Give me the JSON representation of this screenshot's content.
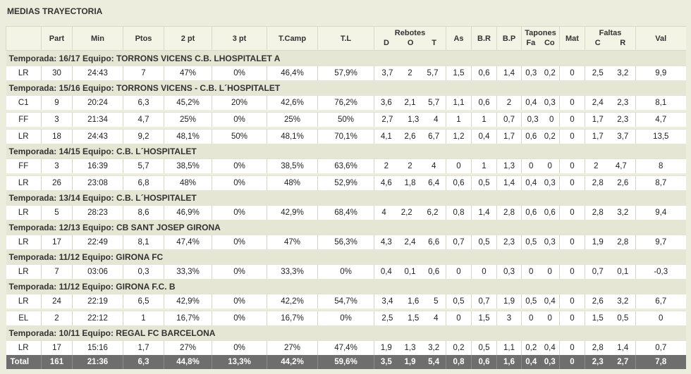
{
  "title": "MEDIAS TRAYECTORIA",
  "headers": {
    "blank": "",
    "part": "Part",
    "min": "Min",
    "ptos": "Ptos",
    "p2": "2 pt",
    "p3": "3 pt",
    "tcamp": "T.Camp",
    "tl": "T.L",
    "rebotes": "Rebotes",
    "reb_d": "D",
    "reb_o": "O",
    "reb_t": "T",
    "as": "As",
    "br": "B.R",
    "bp": "B.P",
    "tapones": "Tapones",
    "tap_fa": "Fa",
    "tap_co": "Co",
    "mat": "Mat",
    "faltas": "Faltas",
    "fal_c": "C",
    "fal_r": "R",
    "val": "Val"
  },
  "seasons": [
    {
      "label": "Temporada: 16/17 Equipo: TORRONS VICENS C.B. LHOSPITALET A",
      "rows": [
        [
          "LR",
          "30",
          "24:43",
          "7",
          "47%",
          "0%",
          "46,4%",
          "57,9%",
          "3,7",
          "2",
          "5,7",
          "1,5",
          "0,6",
          "1,4",
          "0,3",
          "0,2",
          "0",
          "2,5",
          "3,2",
          "9,9"
        ]
      ]
    },
    {
      "label": "Temporada: 15/16 Equipo: TORRONS VICENS - C.B. L´HOSPITALET",
      "rows": [
        [
          "C1",
          "9",
          "20:24",
          "6,3",
          "45,2%",
          "20%",
          "42,6%",
          "76,2%",
          "3,6",
          "2,1",
          "5,7",
          "1,1",
          "0,6",
          "2",
          "0,4",
          "0,3",
          "0",
          "2,4",
          "2,3",
          "8,1"
        ],
        [
          "FF",
          "3",
          "21:34",
          "4,7",
          "25%",
          "0%",
          "25%",
          "50%",
          "2,7",
          "1,3",
          "4",
          "1",
          "1",
          "0,7",
          "0,3",
          "0",
          "0",
          "1,7",
          "2,3",
          "4,7"
        ],
        [
          "LR",
          "18",
          "24:43",
          "9,2",
          "48,1%",
          "50%",
          "48,1%",
          "70,1%",
          "4,1",
          "2,6",
          "6,7",
          "1,2",
          "0,4",
          "1,7",
          "0,6",
          "0,2",
          "0",
          "1,7",
          "3,7",
          "13,5"
        ]
      ]
    },
    {
      "label": "Temporada: 14/15 Equipo: C.B. L´HOSPITALET",
      "rows": [
        [
          "FF",
          "3",
          "16:39",
          "5,7",
          "38,5%",
          "0%",
          "38,5%",
          "63,6%",
          "2",
          "2",
          "4",
          "0",
          "1",
          "1,3",
          "0",
          "0",
          "0",
          "2",
          "4,7",
          "8"
        ],
        [
          "LR",
          "26",
          "23:08",
          "6,8",
          "48%",
          "0%",
          "48%",
          "52,9%",
          "4,6",
          "1,8",
          "6,4",
          "0,6",
          "0,5",
          "1,4",
          "0,4",
          "0,3",
          "0",
          "2,8",
          "2,6",
          "8,7"
        ]
      ]
    },
    {
      "label": "Temporada: 13/14 Equipo: C.B. L´HOSPITALET",
      "rows": [
        [
          "LR",
          "5",
          "28:23",
          "8,6",
          "46,9%",
          "0%",
          "42,9%",
          "68,4%",
          "4",
          "2,2",
          "6,2",
          "0,8",
          "1,4",
          "2,8",
          "0,6",
          "0,6",
          "0",
          "2,8",
          "3,2",
          "9,4"
        ]
      ]
    },
    {
      "label": "Temporada: 12/13 Equipo: CB SANT JOSEP GIRONA",
      "rows": [
        [
          "LR",
          "17",
          "22:49",
          "8,1",
          "47,4%",
          "0%",
          "47%",
          "56,3%",
          "4,3",
          "2,4",
          "6,6",
          "0,7",
          "0,5",
          "2,3",
          "0,5",
          "0,3",
          "0",
          "1,9",
          "2,8",
          "9,7"
        ]
      ]
    },
    {
      "label": "Temporada: 11/12 Equipo: GIRONA FC",
      "rows": [
        [
          "LR",
          "7",
          "03:06",
          "0,3",
          "33,3%",
          "0%",
          "33,3%",
          "0%",
          "0,4",
          "0,1",
          "0,6",
          "0",
          "0",
          "0,3",
          "0",
          "0",
          "0",
          "0,7",
          "0,1",
          "-0,3"
        ]
      ]
    },
    {
      "label": "Temporada: 11/12 Equipo: GIRONA F.C. B",
      "rows": [
        [
          "LR",
          "24",
          "22:19",
          "6,5",
          "42,9%",
          "0%",
          "42,2%",
          "54,7%",
          "3,4",
          "1,6",
          "5",
          "0,5",
          "0,7",
          "1,9",
          "0,5",
          "0,4",
          "0",
          "2,6",
          "3,2",
          "6,7"
        ],
        [
          "EL",
          "2",
          "22:12",
          "1",
          "16,7%",
          "0%",
          "16,7%",
          "0%",
          "2,5",
          "1,5",
          "4",
          "0",
          "1,5",
          "3",
          "0",
          "0",
          "0",
          "1,5",
          "0,5",
          "0"
        ]
      ]
    },
    {
      "label": "Temporada: 10/11 Equipo: REGAL FC BARCELONA",
      "rows": [
        [
          "LR",
          "17",
          "15:16",
          "1,7",
          "27%",
          "0%",
          "27%",
          "47,4%",
          "1,9",
          "1,3",
          "3,2",
          "0,2",
          "0,5",
          "1,1",
          "0,2",
          "0,4",
          "0",
          "2,8",
          "1,4",
          "0,7"
        ]
      ]
    }
  ],
  "total": [
    "Total",
    "161",
    "21:36",
    "6,3",
    "44,8%",
    "13,3%",
    "44,2%",
    "59,6%",
    "3,5",
    "1,9",
    "5,4",
    "0,8",
    "0,6",
    "1,6",
    "0,4",
    "0,3",
    "0",
    "2,3",
    "2,7",
    "7,8"
  ]
}
